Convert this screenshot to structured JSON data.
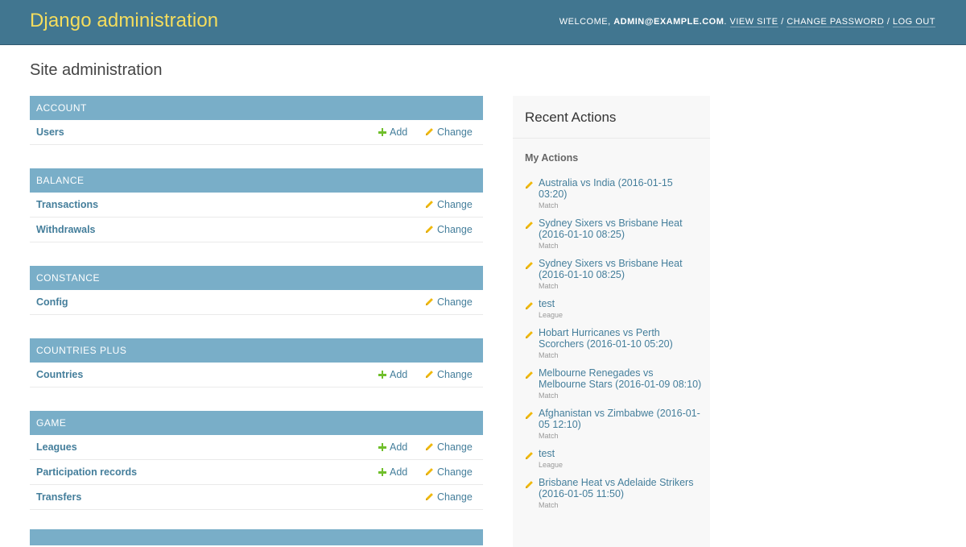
{
  "header": {
    "branding": "Django administration",
    "welcome": "Welcome,",
    "user": "admin@example.com",
    "view_site": "View site",
    "change_password": "Change password",
    "log_out": "Log out",
    "separator": "/"
  },
  "page_title": "Site administration",
  "labels": {
    "add": "Add",
    "change": "Change"
  },
  "modules": [
    {
      "caption": "Account",
      "models": [
        {
          "name": "Users",
          "add": true
        }
      ]
    },
    {
      "caption": "Balance",
      "models": [
        {
          "name": "Transactions",
          "add": false
        },
        {
          "name": "Withdrawals",
          "add": false
        }
      ]
    },
    {
      "caption": "Constance",
      "models": [
        {
          "name": "Config",
          "add": false
        }
      ]
    },
    {
      "caption": "Countries Plus",
      "models": [
        {
          "name": "Countries",
          "add": true
        }
      ]
    },
    {
      "caption": "Game",
      "models": [
        {
          "name": "Leagues",
          "add": true
        },
        {
          "name": "Participation records",
          "add": true
        },
        {
          "name": "Transfers",
          "add": false
        }
      ]
    }
  ],
  "recent_actions": {
    "title": "Recent Actions",
    "subtitle": "My Actions",
    "items": [
      {
        "title": "Australia vs India (2016-01-15 03:20)",
        "type": "Match"
      },
      {
        "title": "Sydney Sixers vs Brisbane Heat (2016-01-10 08:25)",
        "type": "Match"
      },
      {
        "title": "Sydney Sixers vs Brisbane Heat (2016-01-10 08:25)",
        "type": "Match"
      },
      {
        "title": "test",
        "type": "League"
      },
      {
        "title": "Hobart Hurricanes vs Perth Scorchers (2016-01-10 05:20)",
        "type": "Match"
      },
      {
        "title": "Melbourne Renegades vs Melbourne Stars (2016-01-09 08:10)",
        "type": "Match"
      },
      {
        "title": "Afghanistan vs Zimbabwe (2016-01-05 12:10)",
        "type": "Match"
      },
      {
        "title": "test",
        "type": "League"
      },
      {
        "title": "Brisbane Heat vs Adelaide Strikers (2016-01-05 11:50)",
        "type": "Match"
      }
    ]
  },
  "colors": {
    "header_bg": "#417690",
    "branding": "#f5dd5d",
    "caption_bg": "#79aec8",
    "link": "#447e9b",
    "add_icon": "#70bf2b",
    "change_icon": "#efb80b"
  }
}
